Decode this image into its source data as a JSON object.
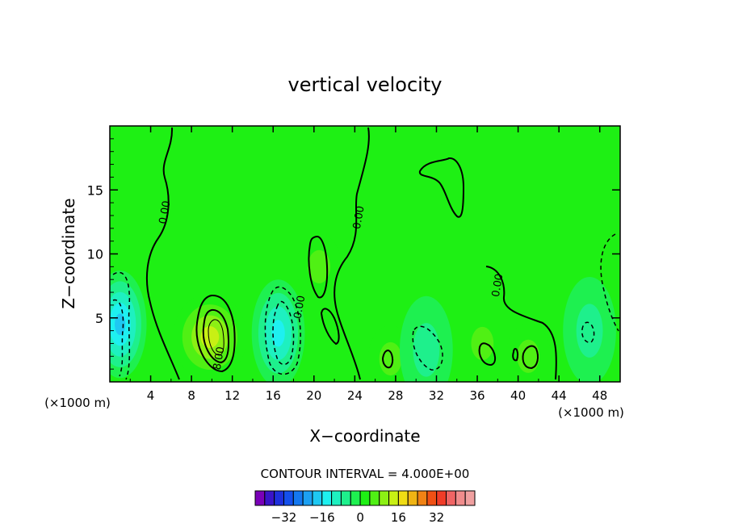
{
  "chart_data": {
    "type": "heatmap",
    "title": "vertical velocity",
    "xlabel": "X−coordinate",
    "ylabel": "Z−coordinate",
    "x_unit": "(×1000 m)",
    "y_unit": "(×1000 m)",
    "xlim": [
      0,
      50
    ],
    "ylim": [
      0,
      20
    ],
    "x_ticks": [
      4,
      8,
      12,
      16,
      20,
      24,
      28,
      32,
      36,
      40,
      44,
      48
    ],
    "y_ticks": [
      5,
      10,
      15
    ],
    "contour_interval_text": "CONTOUR INTERVAL = 4.000E+00",
    "contour_interval": 4,
    "contour_labels": [
      {
        "text": "0.00",
        "x": 5.7,
        "y": 13.2
      },
      {
        "text": "0.00",
        "x": 24.7,
        "y": 12.8
      },
      {
        "text": "0.00",
        "x": 18.9,
        "y": 5.8
      },
      {
        "text": "0.00",
        "x": 38.3,
        "y": 7.5
      },
      {
        "text": "8.00",
        "x": 11.0,
        "y": 1.8
      }
    ],
    "colorbar": {
      "levels": [
        -40,
        -36,
        -32,
        -28,
        -24,
        -20,
        -16,
        -12,
        -8,
        -4,
        0,
        4,
        8,
        12,
        16,
        20,
        24,
        28,
        32,
        36,
        40
      ],
      "colors": [
        "#7a00b8",
        "#3a14c8",
        "#1e30dc",
        "#1450ec",
        "#1478f0",
        "#1ca0f2",
        "#1ec8f2",
        "#1ef0f0",
        "#1ef0c0",
        "#1ef08c",
        "#1ef050",
        "#1ef014",
        "#50f014",
        "#8cf014",
        "#c8f014",
        "#f0dc14",
        "#f0b414",
        "#f08214",
        "#f05014",
        "#f03c28",
        "#f06464",
        "#f08c8c",
        "#f0a0a0"
      ],
      "tick_labels": [
        "−32",
        "−16",
        "0",
        "16",
        "32"
      ],
      "tick_values": [
        -32,
        -16,
        0,
        16,
        32
      ]
    },
    "features": [
      {
        "type": "updraft",
        "x": 9.8,
        "y": 3.5,
        "max": 16
      },
      {
        "type": "updraft",
        "x": 20.5,
        "y": 9.0,
        "max": 8
      },
      {
        "type": "updraft",
        "x": 33.0,
        "y": 16.0,
        "max": 4
      },
      {
        "type": "updraft",
        "x": 36.5,
        "y": 3.0,
        "max": 8
      },
      {
        "type": "updraft",
        "x": 41.0,
        "y": 2.0,
        "max": 8
      },
      {
        "type": "updraft",
        "x": 27.5,
        "y": 1.8,
        "max": 8
      },
      {
        "type": "downdraft",
        "x": 1.0,
        "y": 4.5,
        "min": -20
      },
      {
        "type": "downdraft",
        "x": 16.5,
        "y": 3.8,
        "min": -16
      },
      {
        "type": "downdraft",
        "x": 31.0,
        "y": 2.5,
        "min": -8
      },
      {
        "type": "downdraft",
        "x": 47.0,
        "y": 4.0,
        "min": -8
      }
    ]
  }
}
